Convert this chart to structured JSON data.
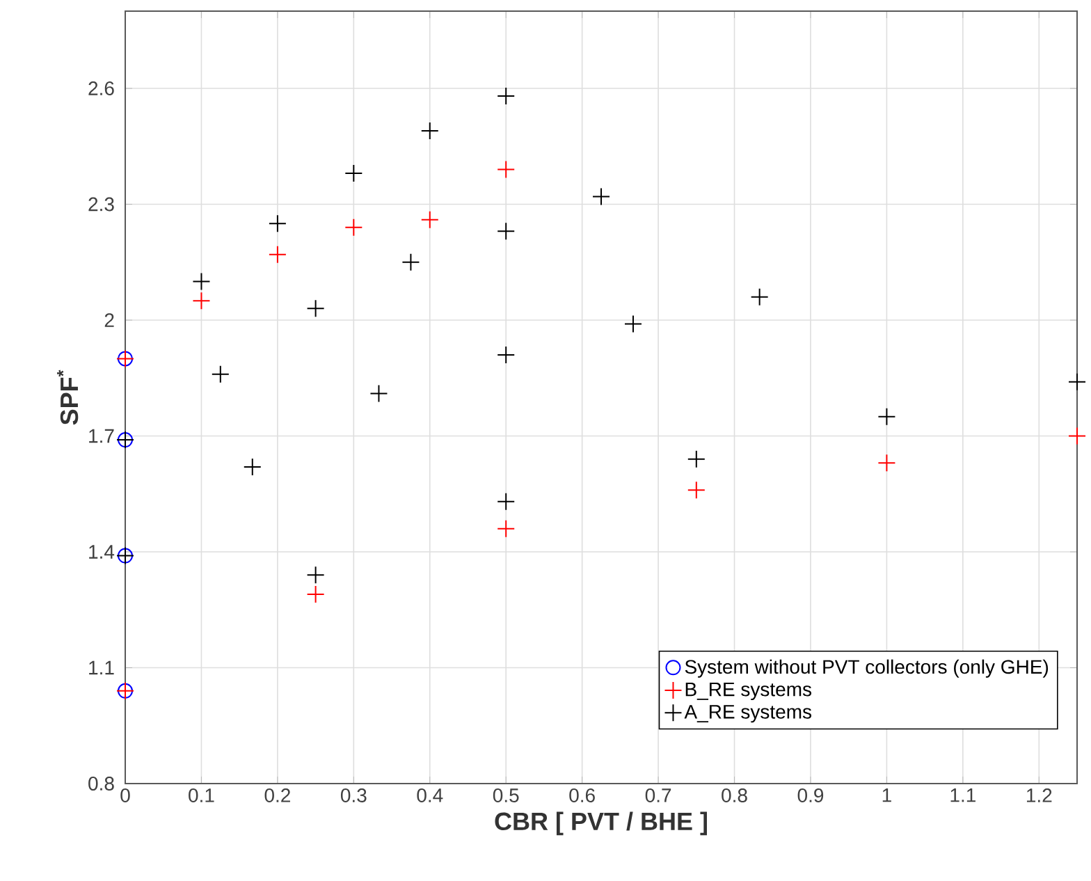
{
  "chart_data": {
    "type": "scatter",
    "xlabel": "CBR [ PVT / BHE ]",
    "ylabel": "SPF$^{*}$",
    "xlim": [
      0,
      1.25
    ],
    "ylim": [
      0.8,
      2.8
    ],
    "xticks": [
      0,
      0.1,
      0.2,
      0.3,
      0.4,
      0.5,
      0.6,
      0.7,
      0.8,
      0.9,
      1,
      1.1,
      1.2
    ],
    "yticks": [
      0.8,
      1.1,
      1.4,
      1.7,
      2,
      2.3,
      2.6
    ],
    "grid": true,
    "legend": "bottom right",
    "series": [
      {
        "name": "System without PVT collectors (only GHE)",
        "color": "#0000ff",
        "marker": "circle",
        "x": [
          0,
          0,
          0,
          0
        ],
        "values": [
          1.9,
          1.69,
          1.39,
          1.04
        ]
      },
      {
        "name": "B_RE systems",
        "color": "#ff0000",
        "marker": "cross",
        "x": [
          0,
          0.1,
          0.2,
          0.25,
          0.3,
          0.4,
          0.5,
          0.5,
          0.75,
          1,
          1.25,
          0
        ],
        "values": [
          1.9,
          2.05,
          2.17,
          1.29,
          2.24,
          2.26,
          2.39,
          1.46,
          1.56,
          1.63,
          1.7,
          1.04
        ]
      },
      {
        "name": "A_RE systems",
        "color": "#000000",
        "marker": "cross",
        "x": [
          0,
          0,
          0.1,
          0.125,
          0.167,
          0.2,
          0.25,
          0.25,
          0.3,
          0.333,
          0.375,
          0.4,
          0.5,
          0.5,
          0.5,
          0.5,
          0.625,
          0.667,
          0.75,
          0.833,
          1,
          1.25
        ],
        "values": [
          1.69,
          1.39,
          2.1,
          1.86,
          1.62,
          2.25,
          2.03,
          1.34,
          2.38,
          1.81,
          2.15,
          2.49,
          2.58,
          2.23,
          1.91,
          1.53,
          2.32,
          1.99,
          1.64,
          2.06,
          1.75,
          1.84
        ]
      }
    ]
  }
}
